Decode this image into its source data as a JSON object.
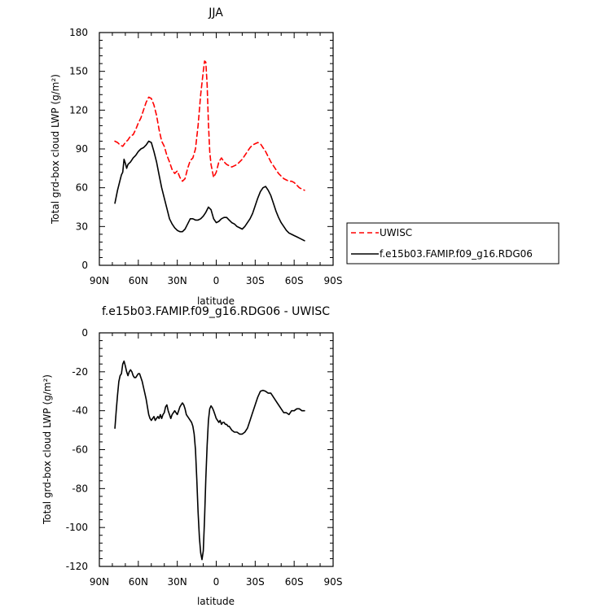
{
  "chart_data": [
    {
      "type": "line",
      "title": "JJA",
      "xlabel": "latitude",
      "ylabel": "Total grd-box cloud LWP (g/m²)",
      "xlim": [
        90,
        -90
      ],
      "ylim": [
        0,
        180
      ],
      "x_ticks": [
        90,
        60,
        30,
        0,
        -30,
        -60,
        -90
      ],
      "x_tick_labels": [
        "90N",
        "60N",
        "30N",
        "0",
        "30S",
        "60S",
        "90S"
      ],
      "y_ticks": [
        0,
        30,
        60,
        90,
        120,
        150,
        180
      ],
      "y_tick_labels": [
        "0",
        "30",
        "60",
        "90",
        "120",
        "150",
        "180"
      ],
      "legend_position": "right-outside",
      "series": [
        {
          "name": "UWISC",
          "color": "#ff0000",
          "dash": "dashed",
          "x": [
            78,
            76,
            74,
            72,
            70,
            68,
            66,
            64,
            62,
            60,
            58,
            56,
            54,
            52,
            50,
            48,
            46,
            44,
            42,
            40,
            38,
            36,
            34,
            32,
            30,
            28,
            26,
            24,
            22,
            20,
            18,
            16,
            14,
            12,
            10,
            9,
            8,
            7,
            6,
            5,
            4,
            2,
            0,
            -2,
            -4,
            -6,
            -8,
            -10,
            -12,
            -14,
            -16,
            -18,
            -20,
            -22,
            -24,
            -26,
            -28,
            -30,
            -32,
            -34,
            -36,
            -38,
            -40,
            -42,
            -44,
            -46,
            -48,
            -50,
            -52,
            -54,
            -56,
            -58,
            -60,
            -62,
            -64,
            -66,
            -68
          ],
          "values": [
            96,
            95,
            93,
            92,
            95,
            97,
            100,
            101,
            105,
            110,
            114,
            120,
            126,
            130,
            129,
            124,
            116,
            105,
            96,
            92,
            85,
            80,
            74,
            71,
            73,
            68,
            65,
            67,
            75,
            81,
            83,
            90,
            108,
            132,
            150,
            158,
            157,
            140,
            110,
            88,
            78,
            68,
            72,
            80,
            83,
            80,
            78,
            77,
            76,
            77,
            78,
            80,
            82,
            85,
            88,
            91,
            93,
            94,
            95,
            94,
            91,
            88,
            84,
            80,
            77,
            74,
            71,
            69,
            67,
            66,
            65,
            65,
            64,
            62,
            60,
            59,
            58
          ]
        },
        {
          "name": "f.e15b03.FAMIP.f09_g16.RDG06",
          "color": "#000000",
          "dash": "solid",
          "x": [
            78,
            76,
            74,
            73,
            72,
            71,
            70,
            69,
            68,
            66,
            64,
            62,
            60,
            58,
            56,
            54,
            52,
            50,
            48,
            46,
            44,
            42,
            40,
            38,
            36,
            34,
            32,
            30,
            28,
            26,
            24,
            22,
            20,
            18,
            16,
            14,
            12,
            10,
            8,
            6,
            4,
            2,
            0,
            -2,
            -4,
            -6,
            -8,
            -10,
            -12,
            -14,
            -16,
            -18,
            -20,
            -22,
            -24,
            -26,
            -28,
            -30,
            -32,
            -34,
            -36,
            -38,
            -40,
            -42,
            -44,
            -46,
            -48,
            -50,
            -52,
            -54,
            -56,
            -58,
            -60,
            -62,
            -64,
            -66,
            -68
          ],
          "values": [
            48,
            58,
            66,
            70,
            72,
            82,
            79,
            75,
            78,
            80,
            83,
            85,
            88,
            90,
            91,
            93,
            96,
            95,
            88,
            80,
            70,
            60,
            52,
            44,
            36,
            32,
            29,
            27,
            26,
            26,
            28,
            32,
            36,
            36,
            35,
            35,
            36,
            38,
            41,
            45,
            43,
            36,
            33,
            34,
            36,
            37,
            37,
            35,
            33,
            32,
            30,
            29,
            28,
            30,
            33,
            36,
            40,
            46,
            52,
            57,
            60,
            61,
            58,
            54,
            48,
            42,
            37,
            33,
            30,
            27,
            25,
            24,
            23,
            22,
            21,
            20,
            19
          ]
        }
      ]
    },
    {
      "type": "line",
      "title": "f.e15b03.FAMIP.f09_g16.RDG06 - UWISC",
      "xlabel": "latitude",
      "ylabel": "Total grd-box cloud LWP (g/m²)",
      "xlim": [
        90,
        -90
      ],
      "ylim": [
        -120,
        0
      ],
      "x_ticks": [
        90,
        60,
        30,
        0,
        -30,
        -60,
        -90
      ],
      "x_tick_labels": [
        "90N",
        "60N",
        "30N",
        "0",
        "30S",
        "60S",
        "90S"
      ],
      "y_ticks": [
        -120,
        -100,
        -80,
        -60,
        -40,
        -20,
        0
      ],
      "y_tick_labels": [
        "-120",
        "-100",
        "-80",
        "-60",
        "-40",
        "-20",
        "0"
      ],
      "series": [
        {
          "color": "#000000",
          "dash": "solid",
          "x": [
            78,
            77,
            76,
            75,
            74,
            73,
            72,
            71,
            70,
            69,
            68,
            67,
            66,
            65,
            64,
            63,
            62,
            61,
            60,
            59,
            58,
            57,
            56,
            55,
            54,
            53,
            52,
            51,
            50,
            49,
            48,
            47,
            46,
            45,
            44,
            43,
            42,
            41,
            40,
            39,
            38,
            37,
            36,
            35,
            34,
            33,
            32,
            31,
            30,
            29,
            28,
            27,
            26,
            25,
            24,
            23,
            22,
            21,
            20,
            19,
            18,
            17,
            16,
            15,
            14,
            13,
            12,
            11,
            10,
            9,
            8,
            7,
            6,
            5,
            4,
            3,
            2,
            1,
            0,
            -1,
            -2,
            -3,
            -4,
            -5,
            -6,
            -7,
            -8,
            -9,
            -10,
            -12,
            -14,
            -16,
            -18,
            -20,
            -22,
            -24,
            -26,
            -28,
            -30,
            -32,
            -34,
            -36,
            -38,
            -40,
            -42,
            -44,
            -46,
            -48,
            -50,
            -52,
            -54,
            -56,
            -58,
            -60,
            -62,
            -64,
            -66,
            -68
          ],
          "values": [
            -49,
            -40,
            -32,
            -25,
            -22,
            -21,
            -16,
            -14.5,
            -17,
            -20,
            -22,
            -20,
            -19,
            -20,
            -22,
            -23,
            -23,
            -22,
            -21,
            -21,
            -23,
            -25,
            -28,
            -31,
            -34,
            -38,
            -42,
            -44,
            -45,
            -44,
            -43,
            -45,
            -44,
            -43,
            -44,
            -42,
            -44,
            -42,
            -41,
            -38,
            -37,
            -40,
            -42,
            -44,
            -42,
            -41,
            -40,
            -41,
            -42,
            -40,
            -38,
            -37,
            -36,
            -37,
            -39,
            -42,
            -43,
            -44,
            -45,
            -46,
            -48,
            -52,
            -60,
            -75,
            -92,
            -105,
            -113,
            -116.5,
            -112,
            -95,
            -75,
            -58,
            -45,
            -39,
            -37.5,
            -38.5,
            -40,
            -42,
            -44,
            -45,
            -46,
            -45,
            -47,
            -46,
            -46,
            -47,
            -47,
            -48,
            -48,
            -50,
            -51,
            -51,
            -52,
            -52,
            -51,
            -49,
            -45,
            -41,
            -37,
            -33,
            -30,
            -29.5,
            -30,
            -31,
            -31,
            -33,
            -35,
            -37,
            -39,
            -41,
            -41,
            -42,
            -40,
            -40,
            -39,
            -39,
            -40,
            -40
          ]
        }
      ]
    }
  ]
}
